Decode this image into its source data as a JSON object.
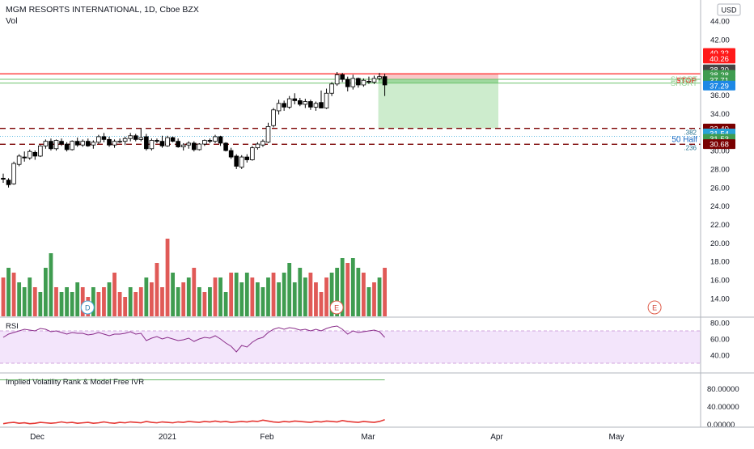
{
  "header": {
    "title": "MGM RESORTS INTERNATIONAL, 1D, Cboe BZX",
    "volume_label": "Vol",
    "currency": "USD"
  },
  "colors": {
    "up": "#3f9c50",
    "down": "#e05a57",
    "candle_up_fill": "#ffffff",
    "candle_border": "#000000",
    "stop_line": "#ff2222",
    "target_line": "#7a0000",
    "short_line": "#6fc36f",
    "stop_zone": "#f9c8c8",
    "profit_zone": "#cdeccd",
    "rsi_line": "#8a2d8a",
    "rsi_band": "#f3e5fb",
    "ivr_line": "#e53935",
    "ivr_ref": "#67b867"
  },
  "chart_data": [
    {
      "type": "candlestick",
      "name": "price",
      "x_labels": [
        "Dec",
        "2021",
        "Feb",
        "Mar",
        "Apr",
        "May"
      ],
      "y_axis_ticks": [
        "44.00",
        "42.00",
        "40.00",
        "38.00",
        "36.00",
        "34.00",
        "32.00",
        "30.00",
        "28.00",
        "26.00",
        "24.00",
        "22.00",
        "20.00",
        "18.00",
        "16.00",
        "14.00"
      ],
      "ylim": [
        12.5,
        45.5
      ],
      "candles": [
        [
          27.0,
          27.5,
          26.5,
          26.9
        ],
        [
          26.8,
          27.0,
          26.0,
          26.3
        ],
        [
          26.4,
          28.8,
          26.3,
          28.6
        ],
        [
          28.5,
          29.6,
          28.3,
          29.4
        ],
        [
          29.3,
          29.9,
          28.8,
          29.2
        ],
        [
          29.2,
          30.1,
          29.0,
          29.9
        ],
        [
          29.8,
          30.0,
          29.0,
          29.4
        ],
        [
          29.4,
          30.6,
          29.3,
          30.5
        ],
        [
          30.5,
          31.2,
          30.2,
          31.0
        ],
        [
          31.0,
          31.3,
          30.0,
          30.2
        ],
        [
          30.2,
          31.2,
          30.0,
          31.1
        ],
        [
          31.0,
          31.3,
          30.5,
          30.7
        ],
        [
          30.7,
          30.9,
          29.9,
          30.1
        ],
        [
          30.1,
          31.1,
          30.0,
          31.0
        ],
        [
          31.0,
          31.4,
          30.4,
          30.6
        ],
        [
          30.6,
          31.2,
          30.4,
          31.0
        ],
        [
          31.0,
          31.3,
          30.4,
          30.5
        ],
        [
          30.6,
          31.1,
          30.2,
          30.9
        ],
        [
          30.9,
          31.7,
          30.7,
          31.5
        ],
        [
          31.5,
          31.9,
          30.9,
          31.2
        ],
        [
          31.2,
          31.5,
          30.4,
          30.6
        ],
        [
          30.6,
          31.2,
          30.3,
          31.0
        ],
        [
          31.0,
          31.3,
          30.8,
          31.0
        ],
        [
          31.0,
          31.5,
          30.6,
          31.3
        ],
        [
          31.3,
          31.9,
          31.0,
          31.6
        ],
        [
          31.6,
          31.8,
          31.0,
          31.2
        ],
        [
          31.2,
          32.4,
          31.0,
          31.4
        ],
        [
          31.5,
          31.8,
          30.0,
          30.2
        ],
        [
          30.2,
          31.3,
          30.0,
          31.1
        ],
        [
          31.1,
          31.3,
          30.8,
          31.0
        ],
        [
          31.0,
          31.6,
          30.3,
          30.5
        ],
        [
          30.5,
          31.6,
          30.4,
          31.4
        ],
        [
          31.4,
          31.5,
          30.9,
          31.0
        ],
        [
          31.0,
          31.3,
          30.3,
          30.4
        ],
        [
          30.4,
          30.8,
          30.0,
          30.6
        ],
        [
          30.6,
          31.0,
          30.2,
          30.8
        ],
        [
          30.8,
          31.0,
          29.9,
          30.1
        ],
        [
          30.1,
          30.8,
          30.0,
          30.7
        ],
        [
          30.7,
          31.2,
          30.5,
          31.1
        ],
        [
          31.1,
          31.3,
          30.8,
          31.0
        ],
        [
          31.0,
          31.7,
          30.8,
          31.5
        ],
        [
          31.5,
          31.6,
          30.5,
          30.8
        ],
        [
          30.8,
          30.9,
          29.9,
          30.0
        ],
        [
          30.0,
          30.3,
          29.1,
          29.3
        ],
        [
          29.4,
          29.6,
          28.0,
          28.3
        ],
        [
          28.2,
          29.5,
          28.0,
          29.3
        ],
        [
          29.3,
          29.6,
          28.7,
          29.0
        ],
        [
          29.0,
          30.5,
          28.9,
          30.3
        ],
        [
          30.3,
          30.9,
          30.1,
          30.7
        ],
        [
          30.6,
          31.2,
          30.4,
          31.0
        ],
        [
          30.9,
          33.0,
          30.8,
          32.6
        ],
        [
          32.7,
          34.6,
          32.5,
          34.4
        ],
        [
          34.3,
          35.5,
          33.9,
          35.1
        ],
        [
          35.1,
          35.4,
          34.3,
          34.7
        ],
        [
          34.7,
          35.9,
          34.5,
          35.6
        ],
        [
          35.6,
          36.2,
          35.0,
          35.4
        ],
        [
          35.4,
          35.7,
          34.8,
          35.0
        ],
        [
          35.0,
          35.6,
          34.6,
          35.3
        ],
        [
          35.3,
          35.5,
          34.4,
          34.7
        ],
        [
          34.7,
          35.3,
          34.3,
          35.1
        ],
        [
          35.2,
          36.5,
          34.9,
          34.6
        ],
        [
          34.6,
          36.7,
          34.5,
          36.2
        ],
        [
          36.2,
          37.4,
          35.9,
          37.2
        ],
        [
          37.2,
          38.5,
          37.0,
          38.2
        ],
        [
          38.2,
          38.4,
          37.4,
          37.7
        ],
        [
          37.7,
          38.0,
          36.4,
          36.9
        ],
        [
          36.9,
          38.2,
          36.6,
          37.8
        ],
        [
          37.8,
          37.9,
          36.8,
          37.1
        ],
        [
          37.1,
          37.8,
          36.9,
          37.6
        ],
        [
          37.5,
          38.0,
          37.2,
          37.4
        ],
        [
          37.4,
          38.1,
          37.2,
          37.8
        ],
        [
          37.8,
          38.4,
          37.6,
          38.0
        ],
        [
          38.0,
          38.3,
          35.9,
          37.1
        ]
      ],
      "price_labels": [
        {
          "value": 40.32,
          "label": "40.32",
          "color": "#ff1a1a"
        },
        {
          "value": 40.26,
          "label": "40.26",
          "color": "#ff1a1a"
        },
        {
          "value": 38.3,
          "label": "38.30",
          "color": "#444444"
        },
        {
          "value": 38.28,
          "label": "38.28",
          "color": "#3f9c50"
        },
        {
          "value": 37.71,
          "label": "37.71",
          "color": "#3f9c50"
        },
        {
          "value": 37.29,
          "label": "37.29",
          "color": "#1e88e5"
        },
        {
          "value": 32.4,
          "label": "32.40",
          "color": "#7a0000"
        },
        {
          "value": 31.54,
          "label": "31.54",
          "color": "#29a3d8"
        },
        {
          "value": 31.53,
          "label": "31.53",
          "color": "#3f9c50"
        },
        {
          "value": 30.68,
          "label": "30.68",
          "color": "#7a0000"
        }
      ],
      "levels": {
        "stop": {
          "value": 38.3,
          "label": "STOP"
        },
        "short_1": {
          "value": 37.71,
          "label": "SHORT"
        },
        "short_2": {
          "value": 37.29,
          "label": "SHORT"
        },
        "fib_382": {
          "value": 32.4,
          "label": ".382"
        },
        "half": {
          "value": 31.54,
          "label": "50 Half"
        },
        "fib_236": {
          "value": 30.68,
          "label": ".236"
        }
      },
      "markers": [
        {
          "label": "D",
          "x_index": 15
        },
        {
          "label": "E",
          "x_index": 62
        },
        {
          "label": "E",
          "x_index": 122
        }
      ]
    },
    {
      "type": "bar",
      "name": "volume",
      "values": [
        [
          8,
          0
        ],
        [
          10,
          1
        ],
        [
          9,
          0
        ],
        [
          7,
          1
        ],
        [
          6,
          1
        ],
        [
          8,
          1
        ],
        [
          6,
          0
        ],
        [
          5,
          1
        ],
        [
          10,
          1
        ],
        [
          13,
          1
        ],
        [
          6,
          0
        ],
        [
          5,
          1
        ],
        [
          6,
          1
        ],
        [
          5,
          1
        ],
        [
          7,
          1
        ],
        [
          6,
          0
        ],
        [
          4,
          0
        ],
        [
          6,
          1
        ],
        [
          5,
          0
        ],
        [
          6,
          0
        ],
        [
          7,
          1
        ],
        [
          9,
          0
        ],
        [
          5,
          0
        ],
        [
          4,
          0
        ],
        [
          6,
          1
        ],
        [
          5,
          0
        ],
        [
          6,
          0
        ],
        [
          8,
          1
        ],
        [
          7,
          0
        ],
        [
          11,
          0
        ],
        [
          6,
          0
        ],
        [
          16,
          0
        ],
        [
          9,
          1
        ],
        [
          6,
          1
        ],
        [
          7,
          0
        ],
        [
          8,
          1
        ],
        [
          10,
          0
        ],
        [
          6,
          1
        ],
        [
          5,
          0
        ],
        [
          6,
          1
        ],
        [
          8,
          0
        ],
        [
          8,
          1
        ],
        [
          5,
          1
        ],
        [
          9,
          0
        ],
        [
          9,
          1
        ],
        [
          7,
          1
        ],
        [
          9,
          1
        ],
        [
          8,
          0
        ],
        [
          7,
          1
        ],
        [
          6,
          1
        ],
        [
          8,
          1
        ],
        [
          9,
          0
        ],
        [
          7,
          1
        ],
        [
          9,
          1
        ],
        [
          11,
          1
        ],
        [
          7,
          1
        ],
        [
          10,
          1
        ],
        [
          8,
          1
        ],
        [
          9,
          0
        ],
        [
          7,
          0
        ],
        [
          5,
          0
        ],
        [
          8,
          0
        ],
        [
          9,
          1
        ],
        [
          10,
          1
        ],
        [
          12,
          1
        ],
        [
          11,
          0
        ],
        [
          12,
          1
        ],
        [
          10,
          1
        ],
        [
          9,
          0
        ],
        [
          6,
          1
        ],
        [
          7,
          0
        ],
        [
          8,
          1
        ],
        [
          10,
          0
        ]
      ]
    },
    {
      "type": "line",
      "name": "RSI",
      "ylim": [
        20,
        85
      ],
      "y_axis_ticks": [
        "80.00",
        "60.00",
        "40.00"
      ],
      "upper_band": 70,
      "lower_band": 30,
      "values": [
        62,
        66,
        68,
        70,
        72,
        71,
        70,
        73,
        72,
        69,
        70,
        68,
        66,
        68,
        67,
        67,
        65,
        66,
        68,
        66,
        64,
        66,
        66,
        67,
        69,
        66,
        67,
        58,
        61,
        63,
        60,
        62,
        60,
        58,
        59,
        61,
        57,
        60,
        62,
        61,
        64,
        60,
        55,
        51,
        44,
        52,
        50,
        56,
        60,
        62,
        68,
        72,
        74,
        72,
        74,
        73,
        71,
        72,
        70,
        72,
        70,
        73,
        75,
        76,
        72,
        66,
        70,
        68,
        69,
        70,
        71,
        69,
        62
      ]
    },
    {
      "type": "line",
      "name": "Implied Volatility Rank & Model Free IVR",
      "ylim": [
        -5,
        110
      ],
      "y_axis_ticks": [
        "80.00000",
        "40.00000",
        "0.00000"
      ],
      "reference_line": 100,
      "values": [
        1,
        3,
        4,
        2,
        3,
        1,
        2,
        4,
        3,
        2,
        3,
        5,
        3,
        4,
        2,
        3,
        4,
        2,
        3,
        5,
        3,
        2,
        4,
        3,
        5,
        4,
        3,
        6,
        4,
        3,
        5,
        4,
        3,
        5,
        4,
        6,
        5,
        4,
        6,
        5,
        7,
        5,
        6,
        4,
        5,
        6,
        5,
        7,
        6,
        9,
        7,
        5,
        4,
        6,
        5,
        7,
        6,
        5,
        4,
        6,
        5,
        7,
        6,
        5,
        8,
        6,
        5,
        4,
        6,
        5,
        4,
        6,
        10
      ]
    }
  ],
  "panels": {
    "rsi_label": "RSI",
    "ivr_label": "Implied Volatility Rank & Model Free IVR"
  }
}
